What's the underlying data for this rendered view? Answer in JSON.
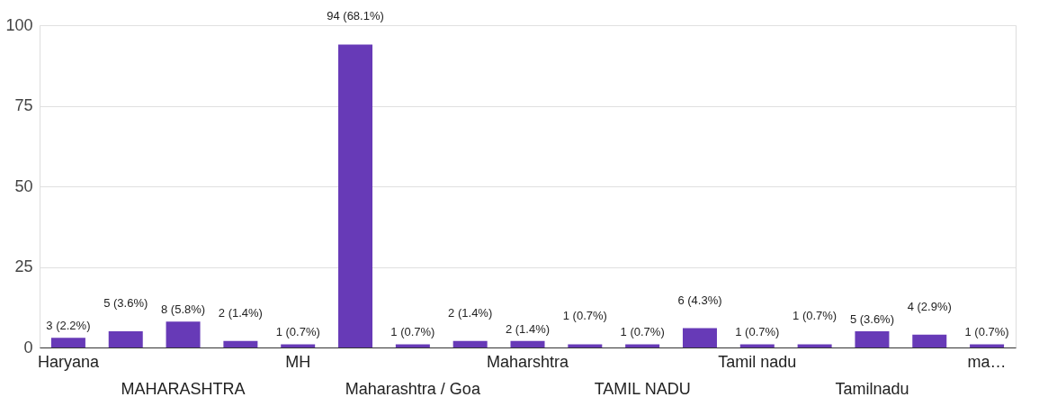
{
  "chart_data": {
    "type": "bar",
    "categories": [
      "Haryana",
      null,
      "MAHARASHTRA",
      null,
      "MH",
      null,
      "Maharashtra / Goa",
      null,
      "Maharshtra",
      null,
      "TAMIL NADU",
      null,
      "Tamil nadu",
      null,
      "Tamilnadu",
      null,
      "ma…"
    ],
    "values": [
      3,
      5,
      8,
      2,
      1,
      94,
      1,
      2,
      2,
      1,
      1,
      6,
      1,
      1,
      5,
      4,
      1
    ],
    "value_labels": [
      "3 (2.2%)",
      "5 (3.6%)",
      "8 (5.8%)",
      "2 (1.4%)",
      "1 (0.7%)",
      "94 (68.1%)",
      "1 (0.7%)",
      "2 (1.4%)",
      "2 (1.4%)",
      "1 (0.7%)",
      "1 (0.7%)",
      "6 (4.3%)",
      "1 (0.7%)",
      "1 (0.7%)",
      "5 (3.6%)",
      "4 (2.9%)",
      "1 (0.7%)"
    ],
    "color": "#673ab7",
    "ylim": [
      0,
      100
    ],
    "yticks": [
      0,
      25,
      50,
      75,
      100
    ],
    "grid": "y"
  }
}
